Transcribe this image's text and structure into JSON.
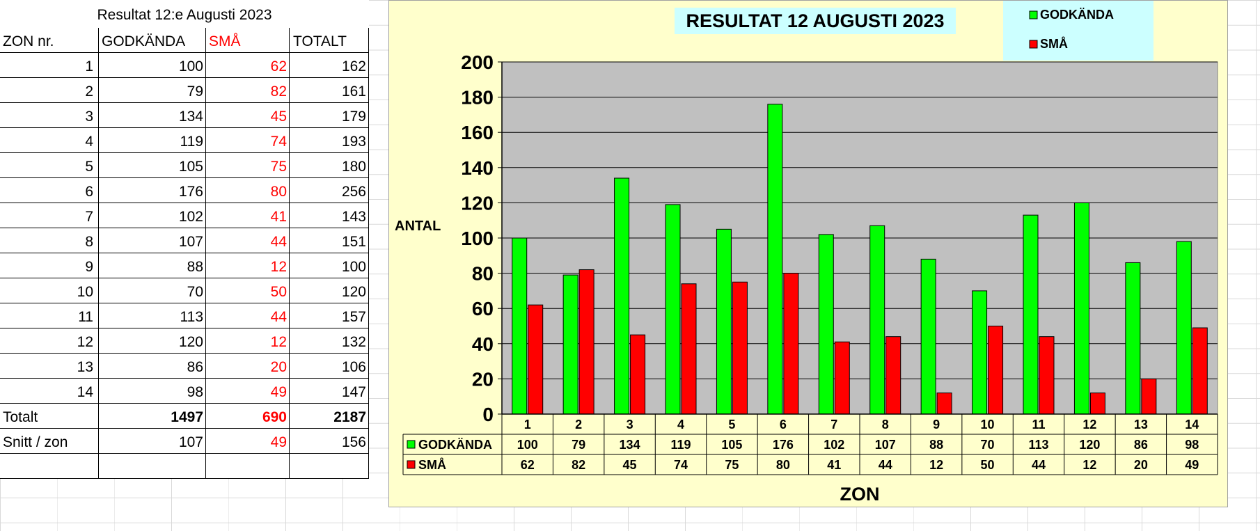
{
  "sheet": {
    "title": "Resultat 12:e Augusti 2023",
    "headers": [
      "ZON nr.",
      "GODKÄNDA",
      "SMÅ",
      "TOTALT"
    ],
    "rows": [
      [
        "1",
        "100",
        "62",
        "162"
      ],
      [
        "2",
        "79",
        "82",
        "161"
      ],
      [
        "3",
        "134",
        "45",
        "179"
      ],
      [
        "4",
        "119",
        "74",
        "193"
      ],
      [
        "5",
        "105",
        "75",
        "180"
      ],
      [
        "6",
        "176",
        "80",
        "256"
      ],
      [
        "7",
        "102",
        "41",
        "143"
      ],
      [
        "8",
        "107",
        "44",
        "151"
      ],
      [
        "9",
        "88",
        "12",
        "100"
      ],
      [
        "10",
        "70",
        "50",
        "120"
      ],
      [
        "11",
        "113",
        "44",
        "157"
      ],
      [
        "12",
        "120",
        "12",
        "132"
      ],
      [
        "13",
        "86",
        "20",
        "106"
      ],
      [
        "14",
        "98",
        "49",
        "147"
      ]
    ],
    "total": [
      "Totalt",
      "1497",
      "690",
      "2187"
    ],
    "avg": [
      "Snitt / zon",
      "107",
      "49",
      "156"
    ]
  },
  "chart_data": {
    "type": "bar",
    "title": "RESULTAT 12 AUGUSTI 2023",
    "xlabel": "ZON",
    "ylabel": "ANTAL",
    "ylim": [
      0,
      200
    ],
    "yticks": [
      0,
      20,
      40,
      60,
      80,
      100,
      120,
      140,
      160,
      180,
      200
    ],
    "categories": [
      "1",
      "2",
      "3",
      "4",
      "5",
      "6",
      "7",
      "8",
      "9",
      "10",
      "11",
      "12",
      "13",
      "14"
    ],
    "series": [
      {
        "name": "GODKÄNDA",
        "color": "#00ff00",
        "values": [
          100,
          79,
          134,
          119,
          105,
          176,
          102,
          107,
          88,
          70,
          113,
          120,
          86,
          98
        ]
      },
      {
        "name": "SMÅ",
        "color": "#ff0000",
        "values": [
          62,
          82,
          45,
          74,
          75,
          80,
          41,
          44,
          12,
          50,
          44,
          12,
          20,
          49
        ]
      }
    ],
    "grid": true,
    "legend": "top-right",
    "data_table": true
  }
}
